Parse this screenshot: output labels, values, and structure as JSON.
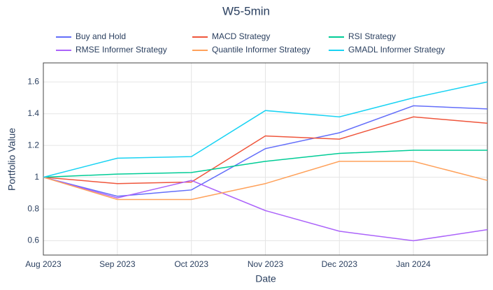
{
  "chart_data": {
    "type": "line",
    "title": "W5-5min",
    "x_label": "Date",
    "y_label": "Portfolio Value",
    "x": [
      "2023-08",
      "2023-09",
      "2023-10",
      "2023-11",
      "2023-12",
      "2024-01",
      "2024-02"
    ],
    "xlim": [
      "2023-08",
      "2024-02"
    ],
    "xticks": [
      {
        "value": "2023-08",
        "label": "Aug 2023"
      },
      {
        "value": "2023-09",
        "label": "Sep 2023"
      },
      {
        "value": "2023-10",
        "label": "Oct 2023"
      },
      {
        "value": "2023-11",
        "label": "Nov 2023"
      },
      {
        "value": "2023-12",
        "label": "Dec 2023"
      },
      {
        "value": "2024-01",
        "label": "Jan 2024"
      }
    ],
    "ylim": [
      0.51,
      1.72
    ],
    "yticks": [
      0.6,
      0.8,
      1,
      1.2,
      1.4,
      1.6
    ],
    "grid": true,
    "legend": "top",
    "series": [
      {
        "name": "Buy and Hold",
        "color": "#636efa",
        "values": [
          1.0,
          0.88,
          0.92,
          1.18,
          1.28,
          1.45,
          1.43
        ]
      },
      {
        "name": "MACD Strategy",
        "color": "#ef553b",
        "values": [
          1.0,
          0.96,
          0.97,
          1.26,
          1.24,
          1.38,
          1.34
        ]
      },
      {
        "name": "RSI Strategy",
        "color": "#00cc96",
        "values": [
          1.0,
          1.02,
          1.03,
          1.1,
          1.15,
          1.17,
          1.17
        ]
      },
      {
        "name": "RMSE Informer Strategy",
        "color": "#ab63fa",
        "values": [
          1.0,
          0.87,
          0.98,
          0.79,
          0.66,
          0.6,
          0.67
        ]
      },
      {
        "name": "Quantile Informer Strategy",
        "color": "#ffa15a",
        "values": [
          1.0,
          0.86,
          0.86,
          0.96,
          1.1,
          1.1,
          0.98
        ]
      },
      {
        "name": "GMADL Informer Strategy",
        "color": "#19d3f3",
        "values": [
          1.0,
          1.12,
          1.13,
          1.42,
          1.38,
          1.5,
          1.6
        ]
      }
    ]
  }
}
